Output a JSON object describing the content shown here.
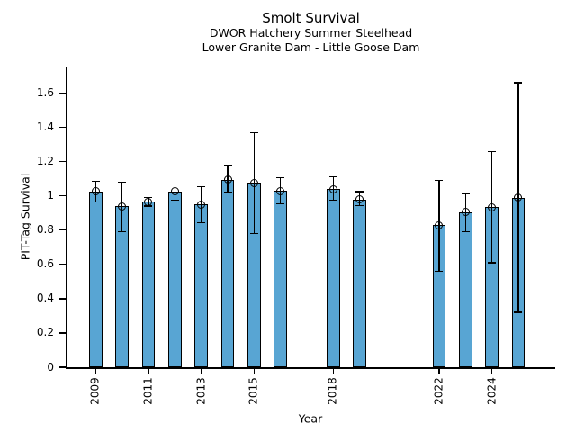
{
  "chart_data": {
    "type": "bar",
    "title": "Smolt Survival",
    "subtitles": [
      "DWOR Hatchery Summer Steelhead",
      "Lower Granite Dam - Little Goose Dam"
    ],
    "xlabel": "Year",
    "ylabel": "PIT-Tag Survival",
    "x": [
      2009,
      2010,
      2011,
      2012,
      2013,
      2014,
      2015,
      2016,
      2018,
      2019,
      2022,
      2023,
      2024,
      2025
    ],
    "values": [
      1.025,
      0.94,
      0.965,
      1.025,
      0.95,
      1.095,
      1.075,
      1.03,
      1.04,
      0.98,
      0.83,
      0.905,
      0.935,
      0.99
    ],
    "err_low": [
      0.965,
      0.79,
      0.94,
      0.975,
      0.845,
      1.02,
      0.78,
      0.955,
      0.975,
      0.945,
      0.56,
      0.79,
      0.61,
      0.32
    ],
    "err_high": [
      1.085,
      1.08,
      0.99,
      1.07,
      1.055,
      1.18,
      1.37,
      1.105,
      1.11,
      1.025,
      1.09,
      1.015,
      1.26,
      1.66
    ],
    "xticks": [
      2009,
      2011,
      2013,
      2015,
      2018,
      2022,
      2024
    ],
    "xtick_labels": [
      "2009",
      "2011",
      "2013",
      "2015",
      "2018",
      "2022",
      "2024"
    ],
    "yticks": [
      0,
      0.2,
      0.4,
      0.6,
      0.8,
      1.0,
      1.2,
      1.4,
      1.6
    ],
    "ytick_labels": [
      "0",
      "0.2",
      "0.4",
      "0.6",
      "0.8",
      "1",
      "1.2",
      "1.4",
      "1.6"
    ],
    "xlim": [
      2007.9,
      2026.4
    ],
    "ylim": [
      0,
      1.75
    ],
    "bar_width": 0.5,
    "bar_color": "#58A5D3",
    "bar_edge_color": "#000000",
    "error_bar_color": "#000000",
    "marker": "open-circle",
    "grid": false,
    "legend": null
  }
}
